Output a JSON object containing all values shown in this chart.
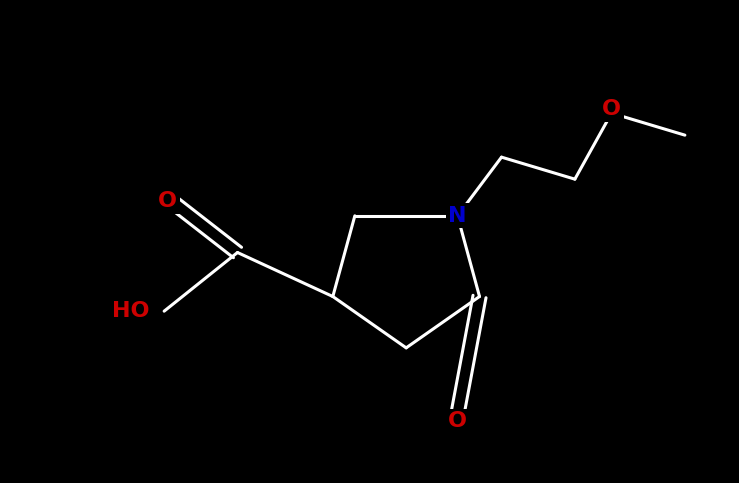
{
  "background_color": "#000000",
  "bond_color": "#ffffff",
  "N_color": "#0000cc",
  "O_color": "#cc0000",
  "figsize": [
    7.39,
    4.83
  ],
  "dpi": 100,
  "bond_lw": 2.2,
  "font_size": 16,
  "xlim": [
    0,
    10
  ],
  "ylim": [
    0,
    6.5
  ]
}
